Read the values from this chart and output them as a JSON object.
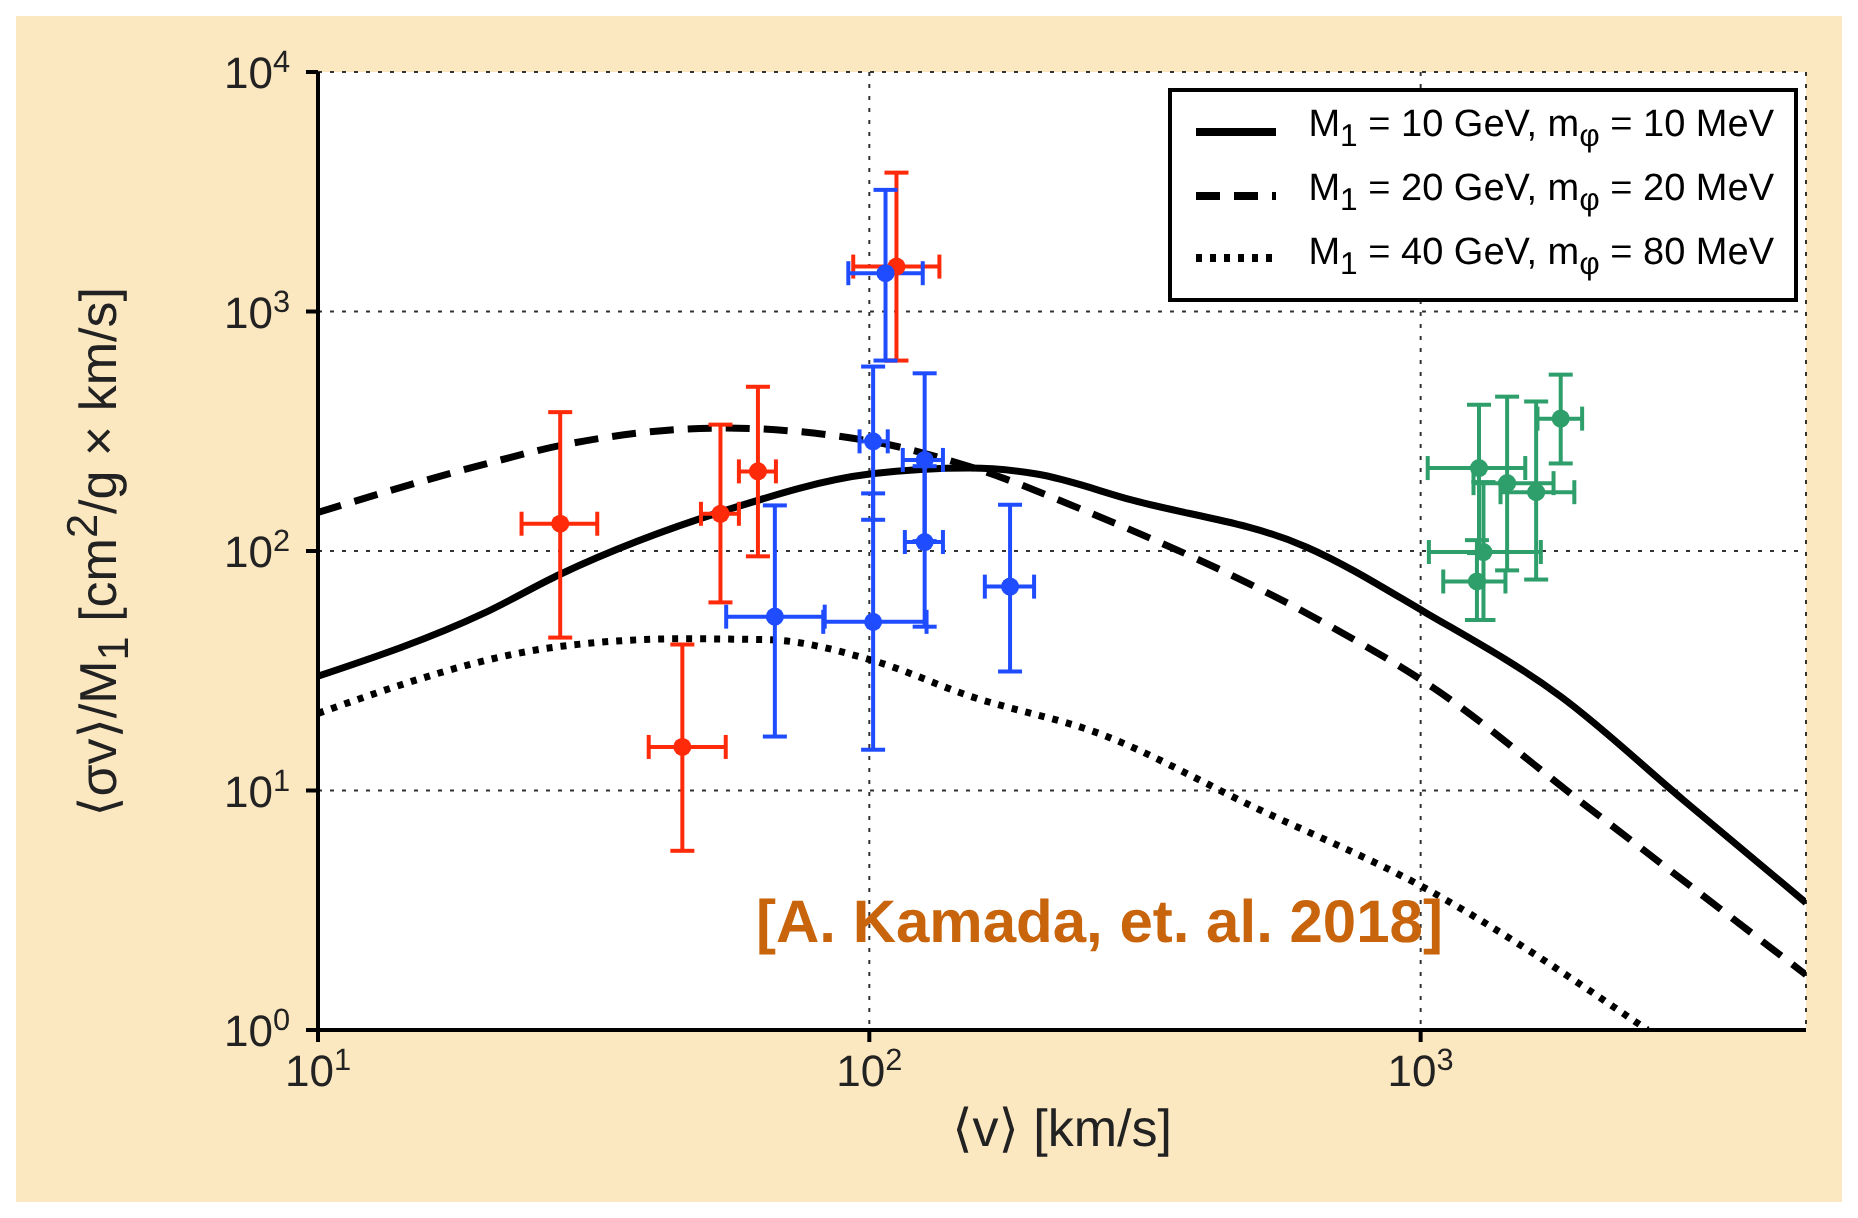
{
  "chart_data": {
    "type": "line",
    "xlabel": "⟨v⟩ [km/s]",
    "ylabel": "⟨σv⟩/M$_{1}$ [cm$^{2}$/g × km/s]",
    "log": "xy",
    "grid": true,
    "legend": "top right",
    "xlim": [
      10,
      5000
    ],
    "ylim": [
      1,
      10000
    ],
    "xticks": [
      {
        "value": 10,
        "label": "10$^{1}$"
      },
      {
        "value": 100,
        "label": "10$^{2}$"
      },
      {
        "value": 1000,
        "label": "10$^{3}$"
      }
    ],
    "yticks": [
      {
        "value": 1,
        "label": "10$^{0}$"
      },
      {
        "value": 10,
        "label": "10$^{1}$"
      },
      {
        "value": 100,
        "label": "10$^{2}$"
      },
      {
        "value": 1000,
        "label": "10$^{3}$"
      },
      {
        "value": 10000,
        "label": "10$^{4}$"
      }
    ],
    "annotations": [
      "[A. Kamada, et. al. 2018]"
    ],
    "series": [
      {
        "name": "M$_{1}$ = 10 GeV, m$_{φ}$ = 10 MeV",
        "color": "#000000",
        "line_style": "solid",
        "marker": "none",
        "x": [
          10,
          20,
          27.5,
          54,
          101,
          152,
          200,
          300,
          620,
          1025,
          1795,
          3000,
          5000
        ],
        "values": [
          30,
          55,
          80,
          146,
          210,
          222,
          210,
          163,
          104,
          55,
          24.7,
          9.1,
          3.4
        ]
      },
      {
        "name": "M$_{1}$ = 20 GeV, m$_{φ}$ = 20 MeV",
        "color": "#000000",
        "line_style": "dashed",
        "marker": "none",
        "x": [
          10,
          20,
          27.6,
          54,
          101,
          152,
          252,
          654,
          1050,
          2000,
          5000
        ],
        "values": [
          145,
          230,
          276,
          326,
          287,
          225,
          144,
          51.5,
          27,
          8.6,
          1.7
        ]
      },
      {
        "name": "M$_{1}$ = 40 GeV, m$_{φ}$ = 80 MeV",
        "color": "#000000",
        "line_style": "dotted",
        "marker": "none",
        "x": [
          10,
          27.6,
          45.8,
          65.6,
          101,
          152,
          261,
          500,
          1000,
          2580
        ],
        "values": [
          21,
          40,
          43,
          42.6,
          35,
          24.8,
          17.3,
          8.5,
          4,
          1
        ]
      },
      {
        "type": "scatter",
        "color": "#ff2a0a",
        "marker": "circle",
        "x": [
          27.5,
          45.8,
          53.7,
          62.8,
          112
        ],
        "values": [
          130,
          15.2,
          143,
          215,
          1540
        ],
        "errors": [
          [
            43.5,
            380
          ],
          [
            5.6,
            40.7
          ],
          [
            61,
            337
          ],
          [
            95,
            485
          ],
          [
            624,
            3800
          ]
        ],
        "xerrors": [
          [
            23.4,
            32.1
          ],
          [
            39.8,
            54.9
          ],
          [
            49.5,
            58
          ],
          [
            58,
            67.7
          ],
          [
            93.5,
            134
          ]
        ]
      },
      {
        "type": "scatter",
        "color": "#1f4cff",
        "marker": "circle",
        "x": [
          107,
          101.6,
          126,
          67.4,
          101.6,
          126,
          180
        ],
        "values": [
          1445,
          287,
          240,
          53.2,
          50.6,
          109,
          71
        ],
        "errors": [
          [
            624,
            3220
          ],
          [
            135,
            589
          ],
          [
            110,
            552
          ],
          [
            16.8,
            155
          ],
          [
            14.8,
            174
          ],
          [
            48.3,
            226
          ],
          [
            31.4,
            156
          ]
        ],
        "xerrors": [
          [
            91.6,
            125
          ],
          [
            96,
            108
          ],
          [
            115,
            136
          ],
          [
            55,
            83
          ],
          [
            82.5,
            127
          ],
          [
            116,
            136
          ],
          [
            162,
            199
          ]
        ]
      },
      {
        "type": "scatter",
        "color": "#2e9e6a",
        "marker": "circle",
        "x": [
          1276,
          1435,
          1620,
          1795,
          1300,
          1265
        ],
        "values": [
          222,
          192,
          176,
          357,
          99,
          74.6
        ],
        "errors": [
          [
            98,
            408
          ],
          [
            83,
            441
          ],
          [
            76,
            421
          ],
          [
            232,
            545
          ],
          [
            51.5,
            194
          ],
          [
            51.5,
            111
          ]
        ],
        "xerrors": [
          [
            1030,
            1548
          ],
          [
            1247,
            1742
          ],
          [
            1396,
            1900
          ],
          [
            1629,
            1963
          ],
          [
            1035,
            1652
          ],
          [
            1099,
            1425
          ]
        ]
      }
    ]
  }
}
